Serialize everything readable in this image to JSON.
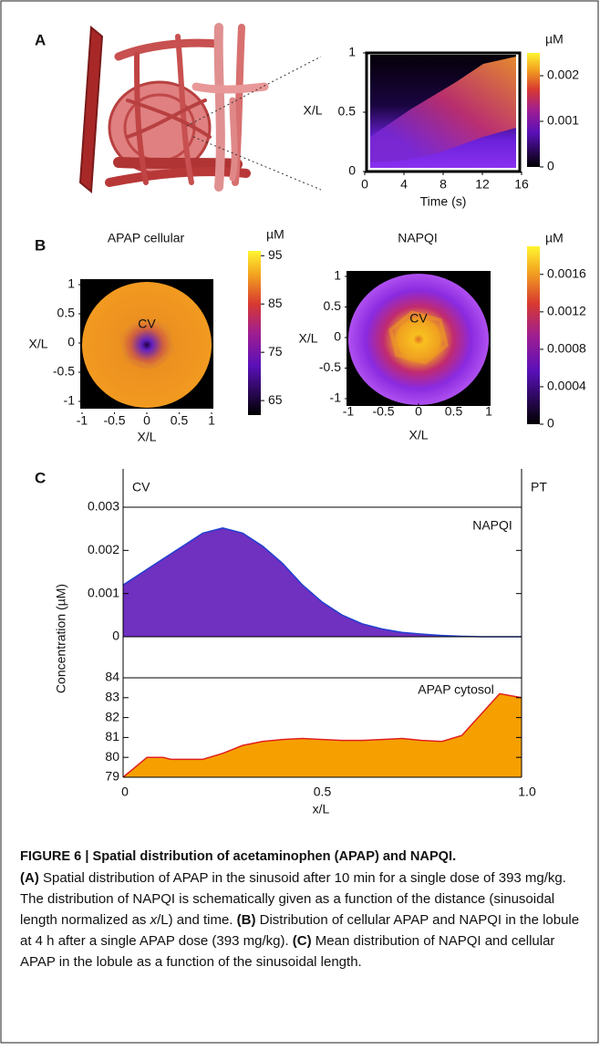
{
  "panels": {
    "a": {
      "label": "A",
      "heatmap": {
        "xlabel": "Time (s)",
        "ylabel": "X/L",
        "xlim": [
          0,
          16
        ],
        "ylim": [
          0,
          1
        ],
        "xticks": [
          0,
          4,
          8,
          12,
          16
        ],
        "yticks": [
          0,
          0.5,
          1
        ],
        "colorbar": {
          "unit": "µM",
          "clim": [
            0,
            0.0025
          ],
          "ticks": [
            0,
            0.001,
            0.002
          ]
        }
      }
    },
    "b": {
      "label": "B",
      "maps": [
        {
          "title": "APAP cellular",
          "xlabel": "X/L",
          "ylabel": "X/L",
          "annotation": "CV",
          "xlim": [
            -1,
            1
          ],
          "ylim": [
            -1,
            1
          ],
          "xticks": [
            -1,
            -0.5,
            0,
            0.5,
            1
          ],
          "yticks": [
            -1,
            -0.5,
            0,
            0.5,
            1
          ],
          "colorbar": {
            "unit": "µM",
            "clim": [
              62,
              96
            ],
            "ticks": [
              65,
              75,
              85,
              95
            ]
          }
        },
        {
          "title": "NAPQI",
          "xlabel": "X/L",
          "ylabel": "X/L",
          "annotation": "CV",
          "xlim": [
            -1,
            1
          ],
          "ylim": [
            -1,
            1
          ],
          "xticks": [
            -1,
            -0.5,
            0,
            0.5,
            1
          ],
          "yticks": [
            -1,
            -0.5,
            0,
            0.5,
            1
          ],
          "colorbar": {
            "unit": "µM",
            "clim": [
              0,
              0.0019
            ],
            "ticks": [
              0,
              0.0004,
              0.0008,
              0.0012,
              0.0016
            ]
          }
        }
      ]
    },
    "c": {
      "label": "C",
      "left_label": "CV",
      "right_label": "PT",
      "ylabel": "Concentration (µM)",
      "xlabel": "x/L",
      "xlim": [
        0,
        1
      ],
      "xticks": [
        0,
        0.5,
        {
          "value": 1,
          "label": "1.0"
        }
      ],
      "charts": [
        {
          "type": "area",
          "name": "NAPQI",
          "color": "#7030c0",
          "line_color": "#2040d0",
          "ylim": [
            0,
            0.003
          ],
          "yticks": [
            0,
            0.001,
            0.002,
            0.003
          ],
          "x": [
            0,
            0.05,
            0.1,
            0.15,
            0.2,
            0.25,
            0.3,
            0.35,
            0.4,
            0.45,
            0.5,
            0.55,
            0.6,
            0.65,
            0.7,
            0.75,
            0.8,
            0.85,
            0.9,
            1
          ],
          "values": [
            0.0012,
            0.0015,
            0.0018,
            0.0021,
            0.0024,
            0.00252,
            0.0024,
            0.0021,
            0.0017,
            0.0012,
            0.0008,
            0.0005,
            0.0003,
            0.00018,
            0.0001,
            6e-05,
            3e-05,
            1e-05,
            0,
            0
          ]
        },
        {
          "type": "area",
          "name": "APAP cytosol",
          "color": "#f5a000",
          "line_color": "#e02020",
          "ylim": [
            79,
            84
          ],
          "yticks": [
            79,
            80,
            81,
            82,
            83,
            84
          ],
          "x": [
            0,
            0.06,
            0.1,
            0.12,
            0.2,
            0.25,
            0.3,
            0.35,
            0.4,
            0.45,
            0.5,
            0.55,
            0.6,
            0.65,
            0.7,
            0.75,
            0.8,
            0.85,
            0.945,
            1
          ],
          "values": [
            79.0,
            80.0,
            80.0,
            79.9,
            79.9,
            80.2,
            80.6,
            80.8,
            80.9,
            80.95,
            80.9,
            80.85,
            80.85,
            80.9,
            80.95,
            80.85,
            80.8,
            81.1,
            83.2,
            83.0
          ]
        }
      ]
    }
  },
  "caption": {
    "title": "FIGURE 6 | Spatial distribution of acetaminophen (APAP) and NAPQI.",
    "body": [
      {
        "text": "(A)",
        "style": "bold"
      },
      {
        "text": " Spatial distribution of APAP in the sinusoid after 10 min for a single dose of 393 mg/kg. The distribution of NAPQI is schematically given as a function of the distance (sinusoidal length normalized as "
      },
      {
        "text": "x",
        "style": "italic"
      },
      {
        "text": "/L) and time. "
      },
      {
        "text": "(B)",
        "style": "bold"
      },
      {
        "text": " Distribution of cellular APAP and NAPQI in the lobule at 4 h after a single APAP dose (393 mg/kg). "
      },
      {
        "text": "(C)",
        "style": "bold"
      },
      {
        "text": " Mean distribution of NAPQI and cellular APAP in the lobule as a function of the sinusoidal length."
      }
    ]
  }
}
